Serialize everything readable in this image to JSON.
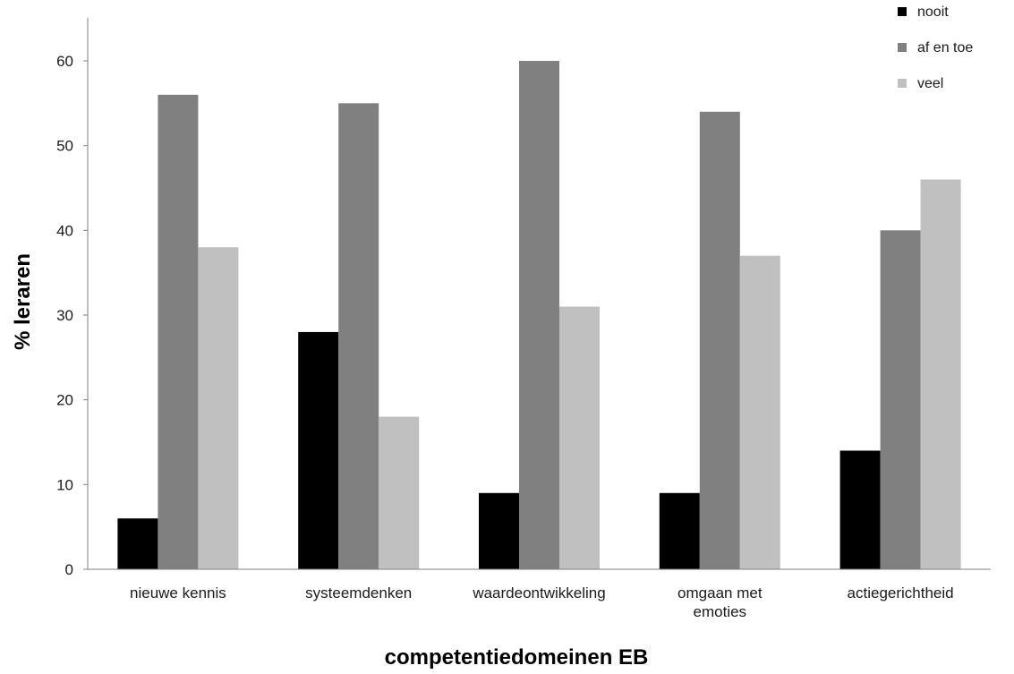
{
  "chart_data": {
    "type": "bar",
    "categories": [
      [
        "nieuwe kennis"
      ],
      [
        "systeemdenken"
      ],
      [
        "waardeontwikkeling"
      ],
      [
        "omgaan met",
        "emoties"
      ],
      [
        "actiegerichtheid"
      ]
    ],
    "series": [
      {
        "name": "nooit",
        "color": "#000000",
        "values": [
          6,
          28,
          9,
          9,
          14
        ]
      },
      {
        "name": "af en toe",
        "color": "#808080",
        "values": [
          56,
          55,
          60,
          54,
          40
        ]
      },
      {
        "name": "veel",
        "color": "#c0c0c0",
        "values": [
          38,
          18,
          31,
          37,
          46
        ]
      }
    ],
    "xlabel": "competentiedomeinen EB",
    "ylabel": "% leraren",
    "ylim": [
      0,
      65
    ],
    "yticks": [
      0,
      10,
      20,
      30,
      40,
      50,
      60
    ],
    "grid": false,
    "legend_position": "top-right"
  }
}
